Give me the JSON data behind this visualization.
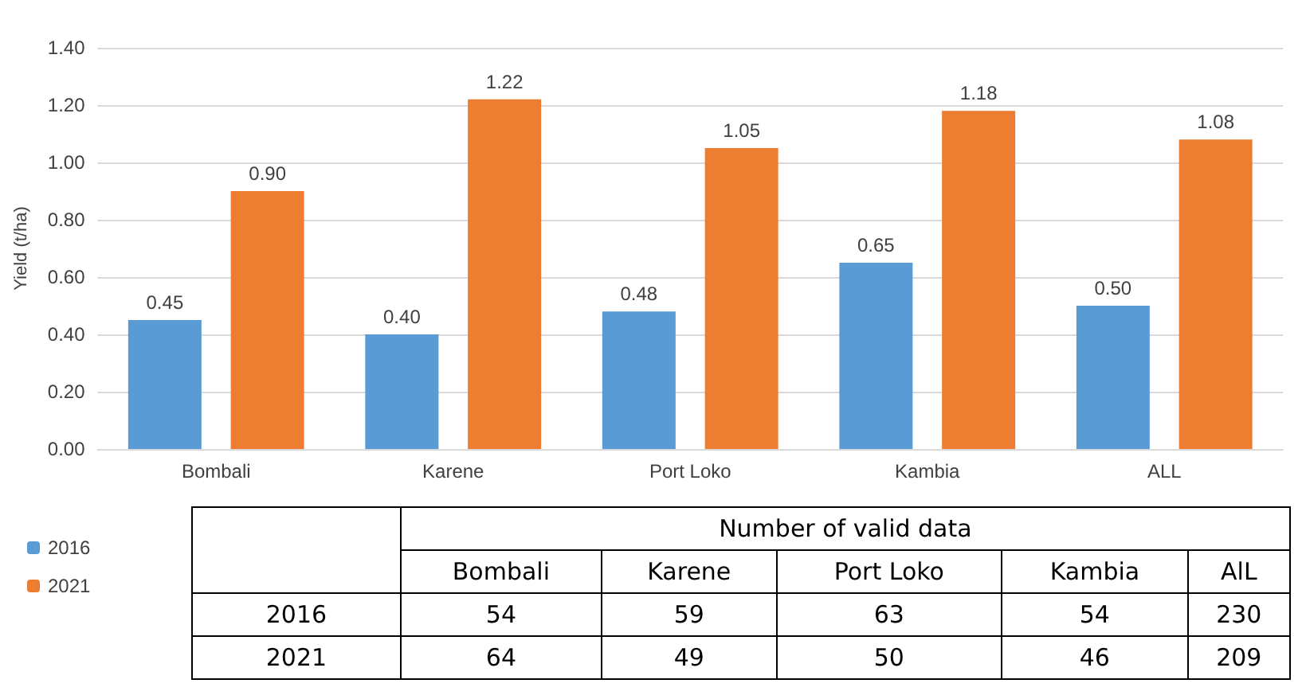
{
  "chart_data": [
    {
      "type": "bar",
      "ylabel": "Yield (t/ha)",
      "categories": [
        "Bombali",
        "Karene",
        "Port Loko",
        "Kambia",
        "ALL"
      ],
      "series": [
        {
          "name": "2016",
          "color": "#5b9bd5",
          "values": [
            0.45,
            0.4,
            0.48,
            0.65,
            0.5
          ],
          "value_labels": [
            "0.45",
            "0.40",
            "0.48",
            "0.65",
            "0.50"
          ]
        },
        {
          "name": "2021",
          "color": "#ed7d31",
          "values": [
            0.9,
            1.22,
            1.05,
            1.18,
            1.08
          ],
          "value_labels": [
            "0.90",
            "1.22",
            "1.05",
            "1.18",
            "1.08"
          ]
        }
      ],
      "ylim": [
        0,
        1.4
      ],
      "yticks": [
        {
          "value": 0,
          "label": "0.00"
        },
        {
          "value": 0.2,
          "label": "0.20"
        },
        {
          "value": 0.4,
          "label": "0.40"
        },
        {
          "value": 0.6,
          "label": "0.60"
        },
        {
          "value": 0.8,
          "label": "0.80"
        },
        {
          "value": 1,
          "label": "1.00"
        },
        {
          "value": 1.2,
          "label": "1.20"
        },
        {
          "value": 1.4,
          "label": "1.40"
        }
      ],
      "grid": "y",
      "legend": "bottom left"
    },
    {
      "type": "other",
      "title": "Number of valid data",
      "categories": [
        "Bombali",
        "Karene",
        "Port Loko",
        "Kambia",
        "AlL"
      ],
      "series": [
        {
          "name": "2016",
          "values": [
            54,
            59,
            63,
            54,
            230
          ]
        },
        {
          "name": "2021",
          "values": [
            64,
            49,
            50,
            46,
            209
          ]
        }
      ],
      "data_labels": true
    }
  ]
}
